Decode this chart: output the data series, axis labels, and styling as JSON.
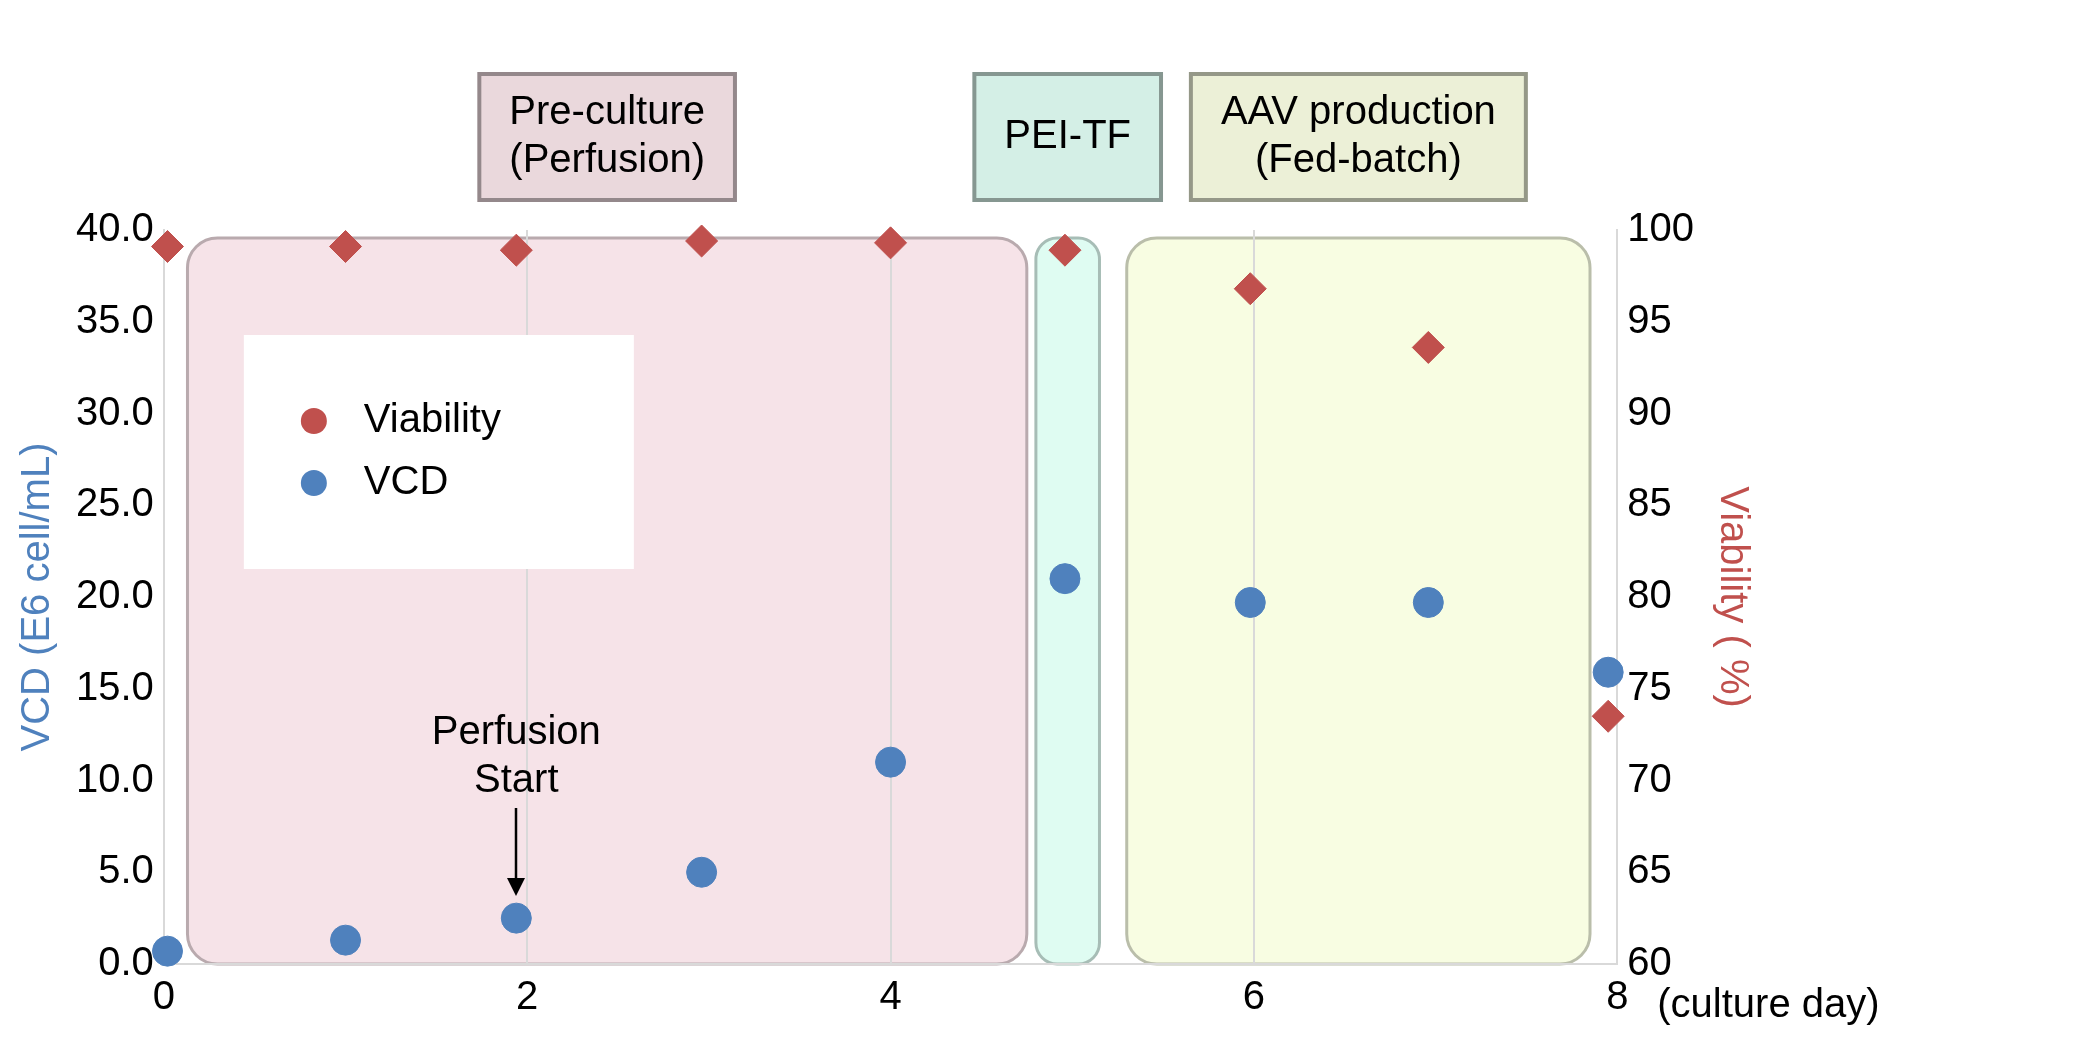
{
  "chart_data": {
    "type": "scatter",
    "xlabel": "(culture day)",
    "ylabel": "VCD (E6 cell/mL)",
    "y2label": "Viability ( %)",
    "xlim": [
      0,
      8
    ],
    "xticks": [
      0,
      2,
      4,
      6,
      8
    ],
    "ylim": [
      0,
      40
    ],
    "yticks": [
      {
        "value": 0,
        "label": "0.0"
      },
      {
        "value": 5,
        "label": "5.0"
      },
      {
        "value": 10,
        "label": "10.0"
      },
      {
        "value": 15,
        "label": "15.0"
      },
      {
        "value": 20,
        "label": "20.0"
      },
      {
        "value": 25,
        "label": "25.0"
      },
      {
        "value": 30,
        "label": "30.0"
      },
      {
        "value": 35,
        "label": "35.0"
      },
      {
        "value": 40,
        "label": "40.0"
      }
    ],
    "y2lim": [
      60,
      100
    ],
    "y2ticks": [
      60,
      65,
      70,
      75,
      80,
      85,
      90,
      95,
      100
    ],
    "grid": "x",
    "legend": "top left",
    "series": [
      {
        "name": "Viability",
        "color": "#c0504d",
        "axis": "y2",
        "marker": "diamond",
        "x": [
          0.02,
          1.0,
          1.94,
          2.96,
          4.0,
          4.96,
          5.98,
          6.96,
          7.95
        ],
        "values": [
          99.1,
          99.1,
          98.9,
          99.4,
          99.3,
          98.9,
          96.8,
          93.6,
          73.5
        ]
      },
      {
        "name": "VCD",
        "color": "#4f81bd",
        "marker": "circle",
        "x": [
          0.02,
          1.0,
          1.94,
          2.96,
          4.0,
          4.96,
          5.98,
          6.96,
          7.95
        ],
        "values": [
          0.7,
          1.3,
          2.5,
          5.0,
          11.0,
          21.0,
          19.7,
          19.7,
          15.9
        ]
      }
    ],
    "bands": [
      {
        "axis": "x",
        "from": 0.13,
        "to": 4.75,
        "label": "Pre-culture (Perfusion)",
        "color": "#f6e3e8"
      },
      {
        "axis": "x",
        "from": 4.8,
        "to": 5.15,
        "label": "PEI-TF",
        "color": "#dffcf2"
      },
      {
        "axis": "x",
        "from": 5.3,
        "to": 7.85,
        "label": "AAV production (Fed-batch)",
        "color": "#f8fde2"
      }
    ],
    "annotations": [
      {
        "text": "Perfusion Start",
        "x": 1.94,
        "y": 2.5
      }
    ]
  }
}
